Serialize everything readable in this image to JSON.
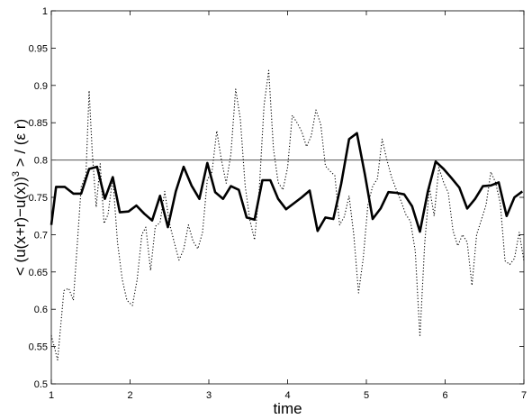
{
  "chart_data": {
    "type": "line",
    "title": "",
    "xlabel": "time",
    "ylabel_parts": {
      "before": "< (u(x+r)−u(x))",
      "exponent": "3",
      "after": " > / (ε r)"
    },
    "xlim": [
      1,
      7
    ],
    "ylim": [
      0.5,
      1
    ],
    "xticks": [
      "1",
      "2",
      "3",
      "4",
      "5",
      "6",
      "7"
    ],
    "yticks": [
      "0.5",
      "0.55",
      "0.6",
      "0.65",
      "0.7",
      "0.75",
      "0.8",
      "0.85",
      "0.9",
      "0.95",
      "1"
    ],
    "grid": false,
    "reference_line": {
      "y": 0.8,
      "color": "#555555"
    },
    "series": [
      {
        "style": "solid-thick",
        "color": "#000000",
        "x": [
          1.0,
          1.06,
          1.17,
          1.28,
          1.38,
          1.48,
          1.58,
          1.68,
          1.78,
          1.87,
          1.98,
          2.08,
          2.18,
          2.28,
          2.38,
          2.48,
          2.58,
          2.68,
          2.78,
          2.88,
          2.98,
          3.08,
          3.18,
          3.28,
          3.38,
          3.48,
          3.58,
          3.68,
          3.78,
          3.88,
          3.98,
          4.08,
          4.18,
          4.28,
          4.38,
          4.48,
          4.58,
          4.68,
          4.78,
          4.88,
          4.98,
          5.08,
          5.18,
          5.28,
          5.38,
          5.48,
          5.58,
          5.68,
          5.78,
          5.88,
          5.98,
          6.08,
          6.18,
          6.28,
          6.38,
          6.48,
          6.58,
          6.68,
          6.78,
          6.88,
          6.98
        ],
        "y": [
          0.713,
          0.764,
          0.764,
          0.755,
          0.755,
          0.788,
          0.791,
          0.748,
          0.777,
          0.73,
          0.731,
          0.739,
          0.728,
          0.719,
          0.752,
          0.71,
          0.758,
          0.791,
          0.766,
          0.748,
          0.796,
          0.757,
          0.748,
          0.765,
          0.76,
          0.723,
          0.72,
          0.773,
          0.773,
          0.748,
          0.734,
          0.742,
          0.75,
          0.759,
          0.705,
          0.723,
          0.721,
          0.768,
          0.828,
          0.836,
          0.781,
          0.721,
          0.735,
          0.757,
          0.756,
          0.754,
          0.738,
          0.704,
          0.758,
          0.798,
          0.788,
          0.776,
          0.763,
          0.735,
          0.748,
          0.765,
          0.766,
          0.77,
          0.725,
          0.75,
          0.758
        ]
      },
      {
        "style": "dotted",
        "color": "#000000",
        "x": [
          1.0,
          1.08,
          1.16,
          1.22,
          1.28,
          1.33,
          1.38,
          1.44,
          1.48,
          1.52,
          1.57,
          1.62,
          1.67,
          1.72,
          1.78,
          1.84,
          1.9,
          1.96,
          2.03,
          2.09,
          2.15,
          2.2,
          2.26,
          2.32,
          2.38,
          2.44,
          2.5,
          2.56,
          2.62,
          2.68,
          2.74,
          2.8,
          2.86,
          2.92,
          2.98,
          3.04,
          3.1,
          3.16,
          3.22,
          3.28,
          3.34,
          3.4,
          3.46,
          3.52,
          3.58,
          3.64,
          3.7,
          3.76,
          3.82,
          3.88,
          3.94,
          4.0,
          4.06,
          4.12,
          4.18,
          4.24,
          4.3,
          4.36,
          4.42,
          4.48,
          4.54,
          4.6,
          4.66,
          4.72,
          4.78,
          4.84,
          4.9,
          4.96,
          5.02,
          5.08,
          5.14,
          5.2,
          5.26,
          5.32,
          5.38,
          5.44,
          5.5,
          5.56,
          5.62,
          5.68,
          5.74,
          5.8,
          5.86,
          5.92,
          5.98,
          6.04,
          6.1,
          6.16,
          6.22,
          6.28,
          6.34,
          6.4,
          6.46,
          6.52,
          6.58,
          6.64,
          6.7,
          6.76,
          6.82,
          6.88,
          6.94,
          7.0
        ],
        "y": [
          0.565,
          0.532,
          0.625,
          0.628,
          0.612,
          0.688,
          0.764,
          0.78,
          0.893,
          0.81,
          0.737,
          0.795,
          0.715,
          0.727,
          0.777,
          0.69,
          0.64,
          0.612,
          0.605,
          0.64,
          0.7,
          0.71,
          0.652,
          0.711,
          0.716,
          0.758,
          0.715,
          0.69,
          0.666,
          0.68,
          0.713,
          0.691,
          0.681,
          0.703,
          0.774,
          0.784,
          0.839,
          0.8,
          0.769,
          0.808,
          0.895,
          0.855,
          0.766,
          0.72,
          0.693,
          0.76,
          0.873,
          0.92,
          0.815,
          0.77,
          0.76,
          0.79,
          0.86,
          0.85,
          0.838,
          0.818,
          0.832,
          0.867,
          0.848,
          0.792,
          0.785,
          0.779,
          0.713,
          0.724,
          0.752,
          0.7,
          0.622,
          0.668,
          0.74,
          0.765,
          0.775,
          0.828,
          0.8,
          0.777,
          0.76,
          0.745,
          0.727,
          0.718,
          0.678,
          0.563,
          0.688,
          0.764,
          0.725,
          0.79,
          0.77,
          0.756,
          0.705,
          0.685,
          0.7,
          0.69,
          0.632,
          0.7,
          0.72,
          0.74,
          0.784,
          0.77,
          0.742,
          0.665,
          0.66,
          0.668,
          0.703,
          0.665
        ]
      }
    ]
  }
}
